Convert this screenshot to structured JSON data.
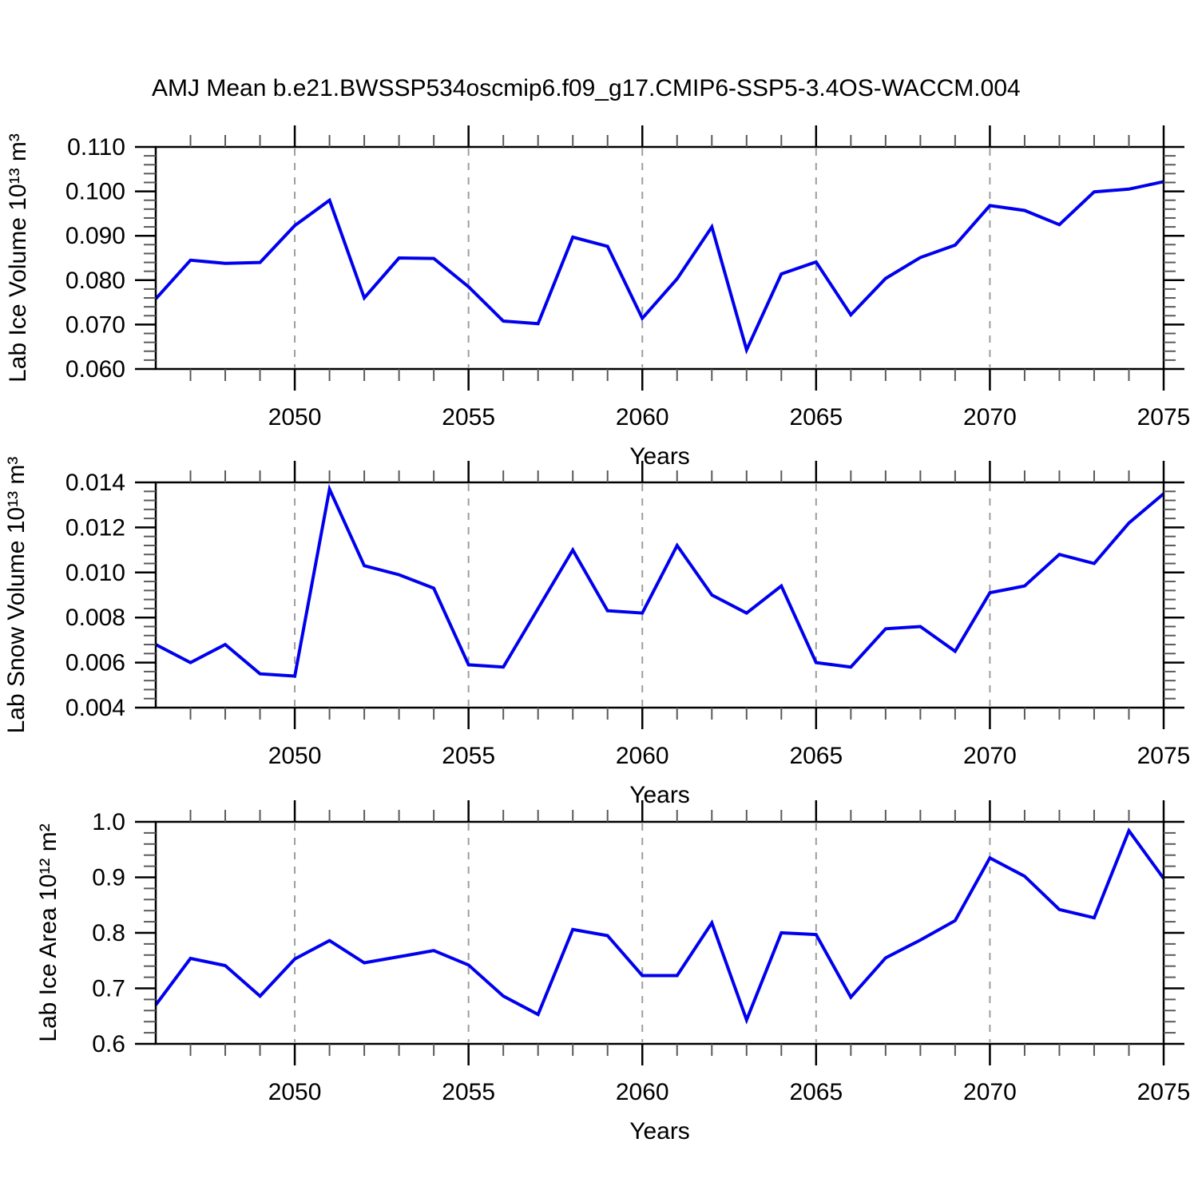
{
  "title": "AMJ Mean b.e21.BWSSP534oscmip6.f09_g17.CMIP6-SSP5-3.4OS-WACCM.004",
  "colors": {
    "line": "#0000ee",
    "frame": "#000000",
    "major_tick": "#000000",
    "minor_tick": "#5a5a5a",
    "gridline": "#9e9e9e",
    "text": "#000000"
  },
  "chart_data": [
    {
      "type": "line",
      "ylabel": "Lab Ice Volume 10¹³ m³",
      "xlabel": "Years",
      "x": [
        2046,
        2047,
        2048,
        2049,
        2050,
        2051,
        2052,
        2053,
        2054,
        2055,
        2056,
        2057,
        2058,
        2059,
        2060,
        2061,
        2062,
        2063,
        2064,
        2065,
        2066,
        2067,
        2068,
        2069,
        2070,
        2071,
        2072,
        2073,
        2074,
        2075
      ],
      "values": [
        0.0758,
        0.0845,
        0.0838,
        0.084,
        0.0923,
        0.098,
        0.076,
        0.085,
        0.0849,
        0.0785,
        0.0708,
        0.0702,
        0.0897,
        0.0876,
        0.0714,
        0.0803,
        0.092,
        0.0643,
        0.0814,
        0.0841,
        0.0722,
        0.0804,
        0.0851,
        0.0879,
        0.0968,
        0.0957,
        0.0925,
        0.0999,
        0.1005,
        0.1022
      ],
      "xlim": [
        2046,
        2075
      ],
      "ylim": [
        0.06,
        0.11
      ],
      "yticks": [
        0.06,
        0.07,
        0.08,
        0.09,
        0.1,
        0.11
      ],
      "ytick_labels": [
        "0.060",
        "0.070",
        "0.080",
        "0.090",
        "0.100",
        "0.110"
      ],
      "y_minor_step": 0.002,
      "xticks": [
        2050,
        2055,
        2060,
        2065,
        2070,
        2075
      ],
      "xtick_labels": [
        "2050",
        "2055",
        "2060",
        "2065",
        "2070",
        "2075"
      ],
      "x_minor_step": 1,
      "grid_x": [
        2050,
        2055,
        2060,
        2065,
        2070
      ],
      "grid": "vertical-dashed",
      "legend": "none"
    },
    {
      "type": "line",
      "ylabel": "Lab Snow Volume 10¹³ m³",
      "xlabel": "Years",
      "x": [
        2046,
        2047,
        2048,
        2049,
        2050,
        2051,
        2052,
        2053,
        2054,
        2055,
        2056,
        2057,
        2058,
        2059,
        2060,
        2061,
        2062,
        2063,
        2064,
        2065,
        2066,
        2067,
        2068,
        2069,
        2070,
        2071,
        2072,
        2073,
        2074,
        2075
      ],
      "values": [
        0.0068,
        0.006,
        0.0068,
        0.0055,
        0.0054,
        0.0137,
        0.0103,
        0.0099,
        0.0093,
        0.0059,
        0.0058,
        0.0084,
        0.011,
        0.0083,
        0.0082,
        0.0112,
        0.009,
        0.0082,
        0.0094,
        0.006,
        0.0058,
        0.0075,
        0.0076,
        0.0065,
        0.0091,
        0.0094,
        0.0108,
        0.0104,
        0.0122,
        0.0135
      ],
      "xlim": [
        2046,
        2075
      ],
      "ylim": [
        0.004,
        0.014
      ],
      "yticks": [
        0.004,
        0.006,
        0.008,
        0.01,
        0.012,
        0.014
      ],
      "ytick_labels": [
        "0.004",
        "0.006",
        "0.008",
        "0.010",
        "0.012",
        "0.014"
      ],
      "y_minor_step": 0.0004,
      "xticks": [
        2050,
        2055,
        2060,
        2065,
        2070,
        2075
      ],
      "xtick_labels": [
        "2050",
        "2055",
        "2060",
        "2065",
        "2070",
        "2075"
      ],
      "x_minor_step": 1,
      "grid_x": [
        2050,
        2055,
        2060,
        2065,
        2070
      ],
      "grid": "vertical-dashed",
      "legend": "none"
    },
    {
      "type": "line",
      "ylabel": "Lab Ice Area 10¹² m²",
      "xlabel": "Years",
      "x": [
        2046,
        2047,
        2048,
        2049,
        2050,
        2051,
        2052,
        2053,
        2054,
        2055,
        2056,
        2057,
        2058,
        2059,
        2060,
        2061,
        2062,
        2063,
        2064,
        2065,
        2066,
        2067,
        2068,
        2069,
        2070,
        2071,
        2072,
        2073,
        2074,
        2075
      ],
      "values": [
        0.67,
        0.754,
        0.741,
        0.686,
        0.753,
        0.786,
        0.746,
        0.757,
        0.768,
        0.742,
        0.686,
        0.653,
        0.806,
        0.795,
        0.723,
        0.723,
        0.818,
        0.643,
        0.8,
        0.797,
        0.684,
        0.755,
        0.787,
        0.822,
        0.935,
        0.902,
        0.842,
        0.827,
        0.984,
        0.898
      ],
      "xlim": [
        2046,
        2075
      ],
      "ylim": [
        0.6,
        1.0
      ],
      "yticks": [
        0.6,
        0.7,
        0.8,
        0.9,
        1.0
      ],
      "ytick_labels": [
        "0.6",
        "0.7",
        "0.8",
        "0.9",
        "1.0"
      ],
      "y_minor_step": 0.02,
      "xticks": [
        2050,
        2055,
        2060,
        2065,
        2070,
        2075
      ],
      "xtick_labels": [
        "2050",
        "2055",
        "2060",
        "2065",
        "2070",
        "2075"
      ],
      "x_minor_step": 1,
      "grid_x": [
        2050,
        2055,
        2060,
        2065,
        2070
      ],
      "grid": "vertical-dashed",
      "legend": "none"
    }
  ]
}
